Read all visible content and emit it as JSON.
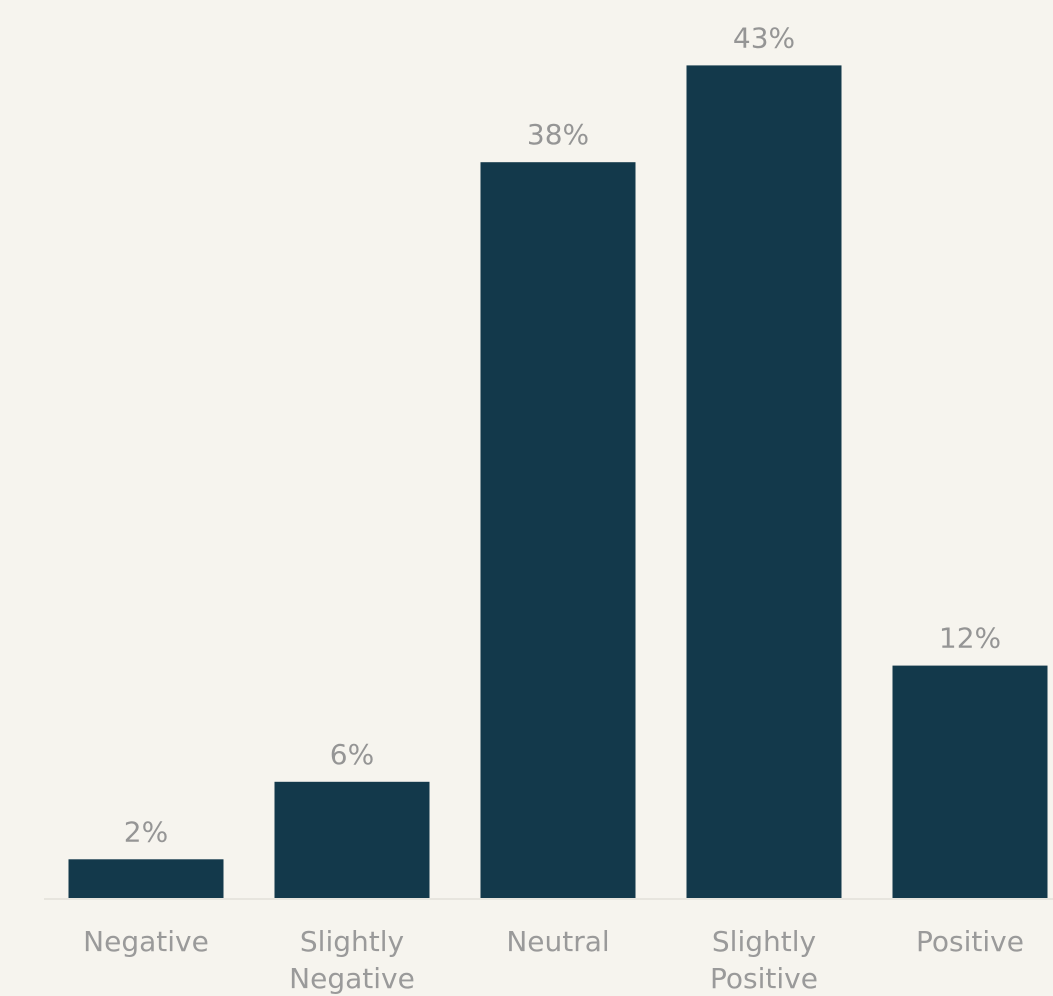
{
  "chart_data": {
    "type": "bar",
    "categories": [
      "Negative",
      "Slightly Negative",
      "Neutral",
      "Slightly Positive",
      "Positive"
    ],
    "values": [
      2,
      6,
      38,
      43,
      12
    ],
    "value_labels": [
      "2%",
      "6%",
      "38%",
      "43%",
      "12%"
    ],
    "ylim": [
      0,
      44
    ],
    "grid": false,
    "colors": {
      "bar": "#13394b",
      "label": "#959595",
      "background": "#f6f4ee"
    }
  }
}
